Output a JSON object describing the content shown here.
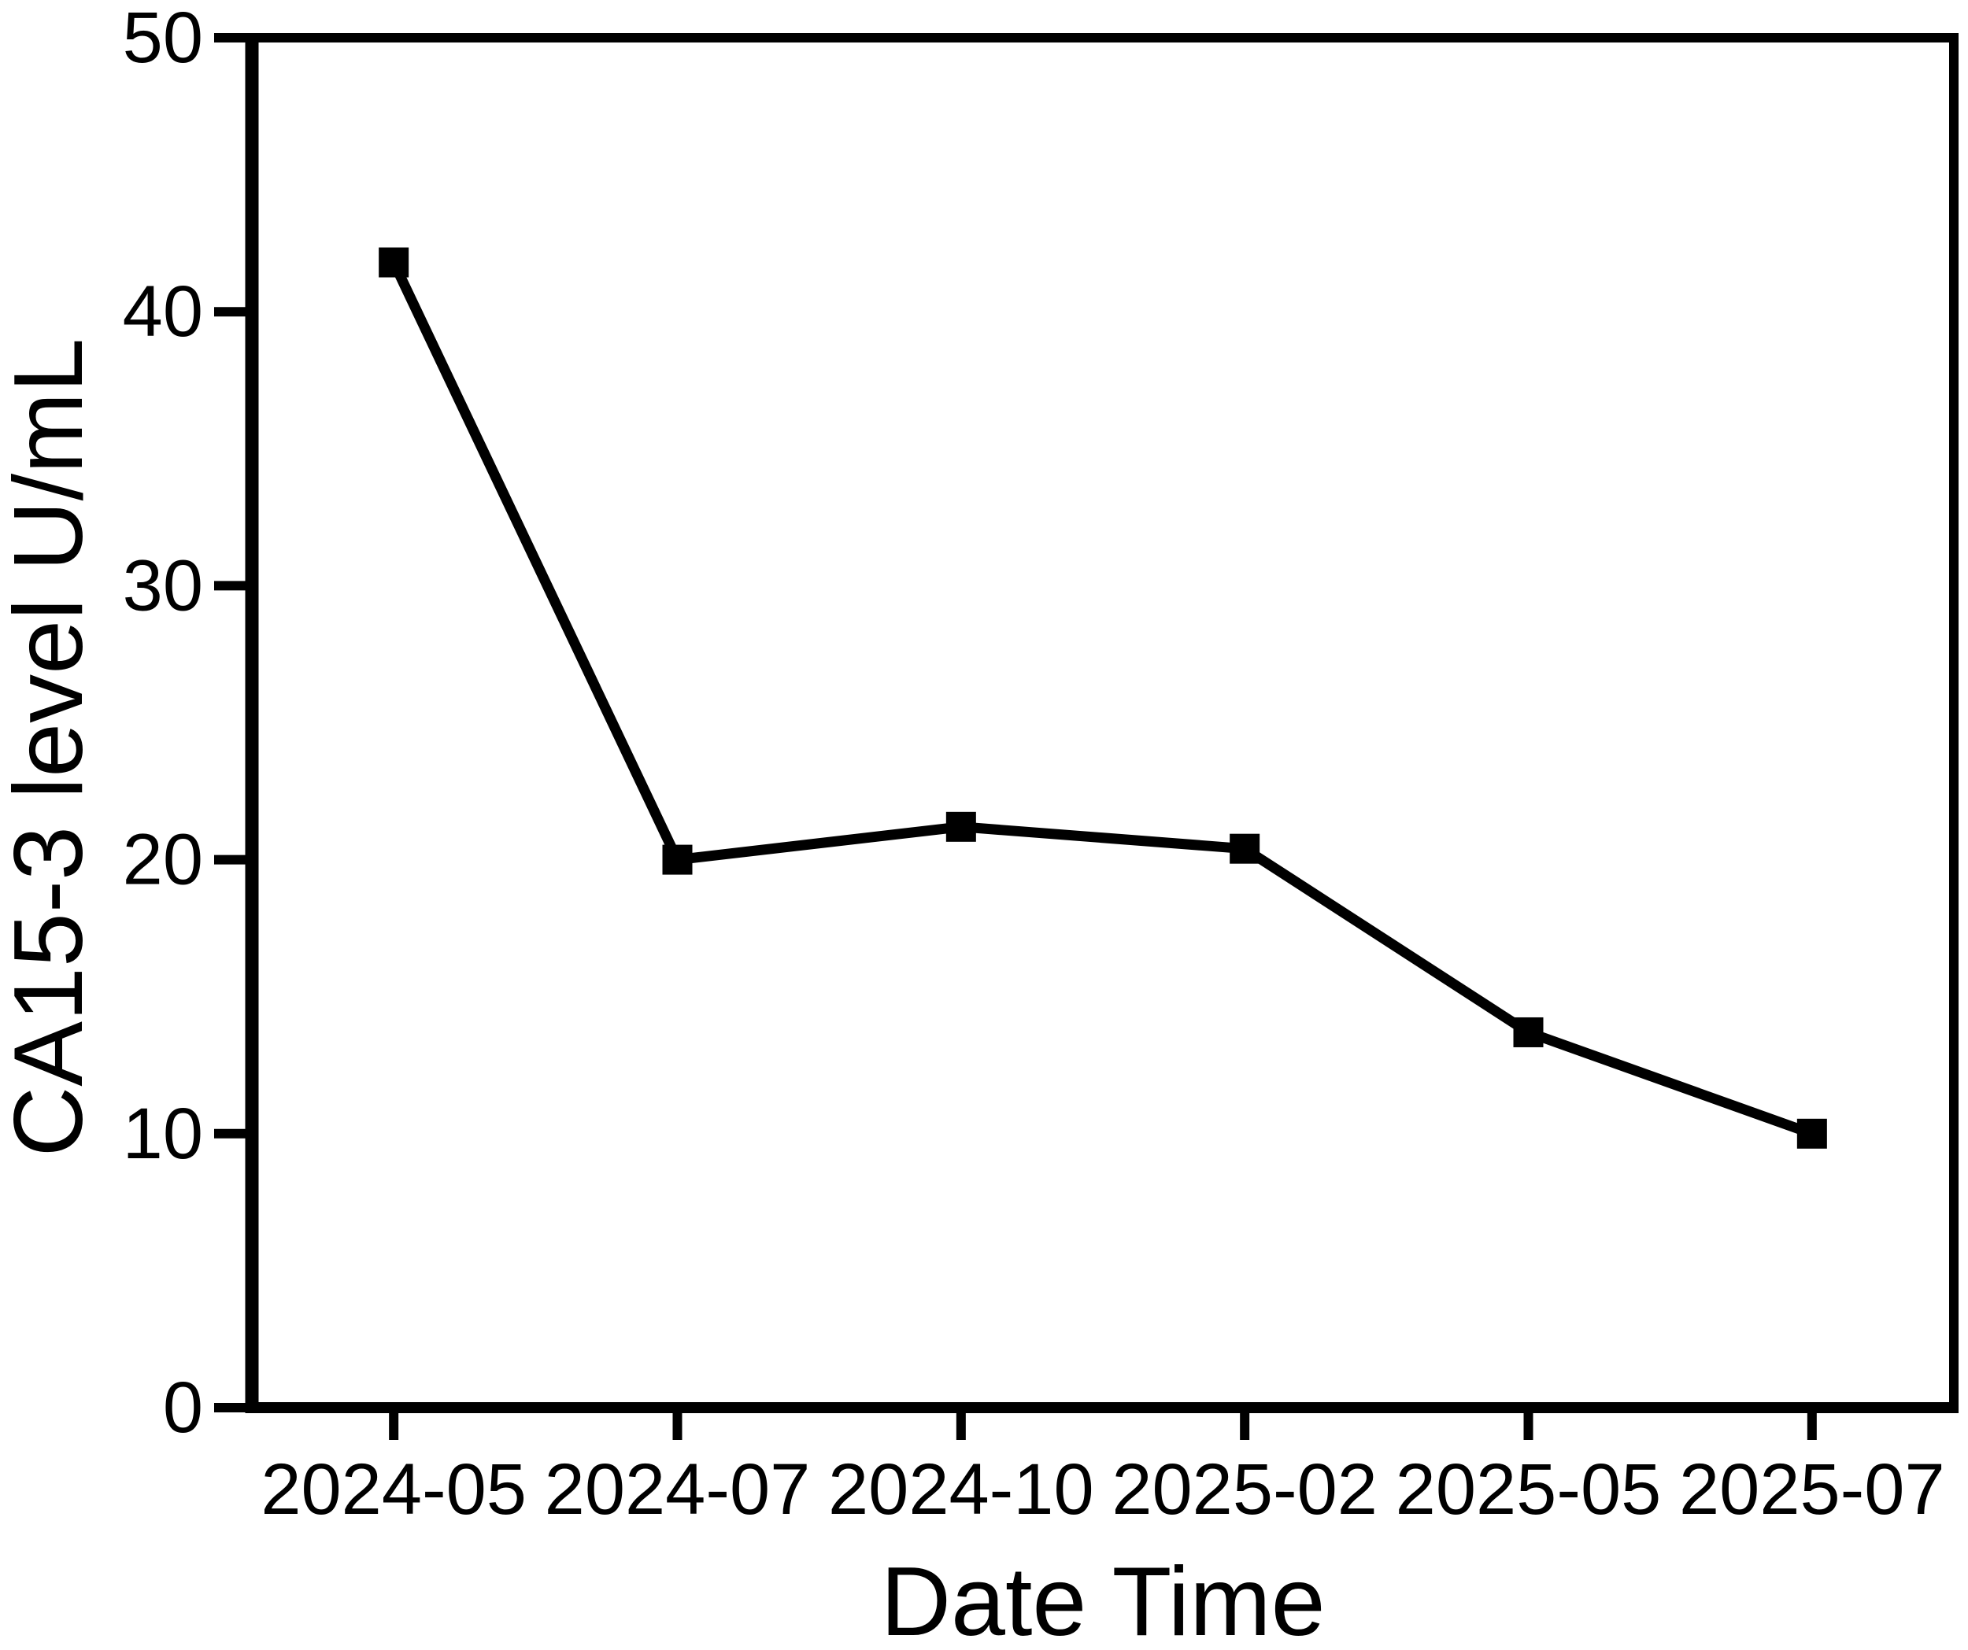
{
  "page": {
    "background_color": "#ffffff",
    "foreground_color": "#000000"
  },
  "chart_data": {
    "type": "line",
    "title": "",
    "xlabel": "Date Time",
    "ylabel": "CA15-3 level U/mL",
    "categories": [
      "2024-05",
      "2024-07",
      "2024-10",
      "2025-02",
      "2025-05",
      "2025-07"
    ],
    "series": [
      {
        "name": "CA15-3 level",
        "values": [
          41.8,
          20.0,
          21.2,
          20.4,
          13.7,
          10.0
        ],
        "color": "#000000",
        "marker": "square"
      }
    ],
    "ylim": [
      0,
      50
    ],
    "yticks": [
      0,
      10,
      20,
      30,
      40,
      50
    ],
    "grid": false,
    "legend_position": "none",
    "axis_color": "#000000",
    "frame": "full-box"
  }
}
